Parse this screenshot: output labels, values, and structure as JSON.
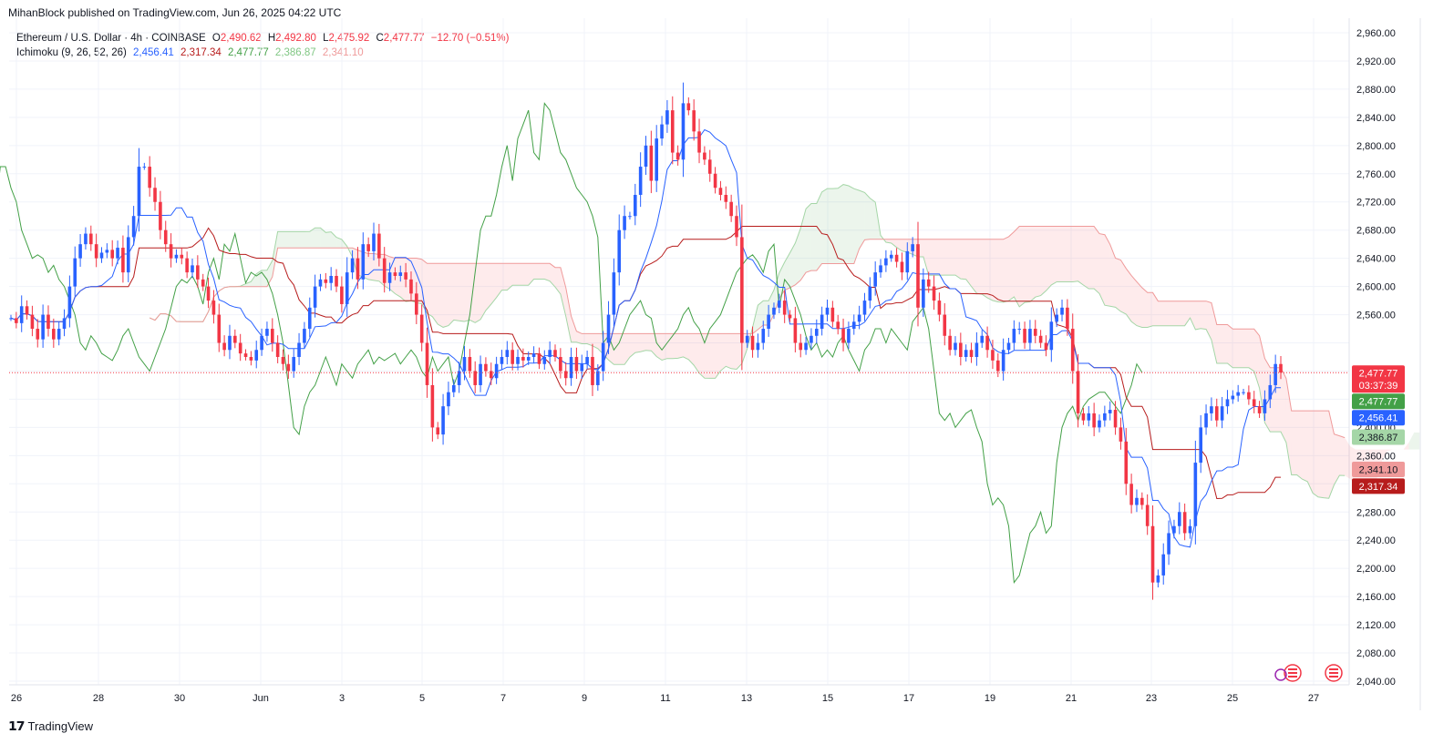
{
  "header": {
    "published": "MihanBlock published on TradingView.com, Jun 26, 2025 04:22 UTC"
  },
  "legend": {
    "symbol": "Ethereum / U.S. Dollar · 4h · COINBASE",
    "o_label": "O",
    "o_value": "2,490.62",
    "h_label": "H",
    "h_value": "2,492.80",
    "l_label": "L",
    "l_value": "2,475.92",
    "c_label": "C",
    "c_value": "2,477.77",
    "change": "−12.70 (−0.51%)",
    "indicator": "Ichimoku (9, 26, 52, 26)",
    "ind_values": [
      "2,456.41",
      "2,317.34",
      "2,477.77",
      "2,386.87",
      "2,341.10"
    ]
  },
  "footer": {
    "brand": "TradingView"
  },
  "colors": {
    "up": "#2962ff",
    "down": "#f23645",
    "conversion": "#2962ff",
    "base": "#b71c1c",
    "lagging": "#43a047",
    "lead_a": "#a5d6a7",
    "lead_b": "#ef9a9a",
    "cloud_bull": "rgba(67,160,71,0.10)",
    "cloud_bear": "rgba(242,54,69,0.10)"
  },
  "chart_data": {
    "type": "candlestick",
    "x_ticks": [
      "26",
      "28",
      "30",
      "Jun",
      "3",
      "5",
      "7",
      "9",
      "11",
      "13",
      "15",
      "17",
      "19",
      "21",
      "23",
      "25",
      "27"
    ],
    "y_ticks": [
      "2,960.00",
      "2,920.00",
      "2,880.00",
      "2,840.00",
      "2,800.00",
      "2,760.00",
      "2,720.00",
      "2,680.00",
      "2,640.00",
      "2,600.00",
      "2,560.00",
      "2,440.00",
      "2,400.00",
      "2,360.00",
      "2,280.00",
      "2,240.00",
      "2,200.00",
      "2,160.00",
      "2,120.00",
      "2,080.00",
      "2,040.00"
    ],
    "ylim": [
      2040,
      2960
    ],
    "price_labels": [
      {
        "name": "last-price",
        "text": "2,477.77",
        "sub": "03:37:39",
        "value": 2477.77,
        "color": "#f23645"
      },
      {
        "name": "lead-a",
        "text": "2,477.77",
        "value": 2477.77,
        "color": "#43a047"
      },
      {
        "name": "conversion",
        "text": "2,456.41",
        "value": 2456.41,
        "color": "#2962ff"
      },
      {
        "name": "lagging",
        "text": "2,386.87",
        "value": 2386.87,
        "color": "#a5d6a7",
        "dark": true
      },
      {
        "name": "lead-b",
        "text": "2,341.10",
        "value": 2341.1,
        "color": "#ef9a9a",
        "dark": true
      },
      {
        "name": "base",
        "text": "2,317.34",
        "value": 2317.34,
        "color": "#b71c1c"
      }
    ],
    "candles_close": [
      2555,
      2548,
      2572,
      2560,
      2540,
      2525,
      2560,
      2540,
      2525,
      2540,
      2555,
      2600,
      2640,
      2660,
      2675,
      2660,
      2640,
      2648,
      2652,
      2640,
      2655,
      2620,
      2670,
      2700,
      2770,
      2770,
      2740,
      2720,
      2680,
      2660,
      2640,
      2645,
      2640,
      2620,
      2630,
      2610,
      2600,
      2580,
      2560,
      2520,
      2510,
      2530,
      2520,
      2505,
      2500,
      2495,
      2510,
      2530,
      2540,
      2520,
      2500,
      2490,
      2480,
      2500,
      2520,
      2540,
      2570,
      2600,
      2610,
      2605,
      2615,
      2600,
      2575,
      2620,
      2640,
      2610,
      2660,
      2650,
      2675,
      2640,
      2605,
      2620,
      2615,
      2620,
      2610,
      2590,
      2560,
      2520,
      2460,
      2400,
      2390,
      2430,
      2450,
      2460,
      2480,
      2500,
      2480,
      2460,
      2490,
      2480,
      2470,
      2490,
      2500,
      2510,
      2490,
      2500,
      2495,
      2500,
      2505,
      2490,
      2500,
      2510,
      2500,
      2480,
      2470,
      2500,
      2480,
      2490,
      2500,
      2460,
      2480,
      2520,
      2560,
      2620,
      2680,
      2700,
      2700,
      2730,
      2770,
      2800,
      2750,
      2810,
      2830,
      2850,
      2790,
      2780,
      2860,
      2850,
      2820,
      2790,
      2780,
      2760,
      2740,
      2730,
      2720,
      2700,
      2670,
      2520,
      2530,
      2510,
      2520,
      2540,
      2560,
      2570,
      2580,
      2560,
      2555,
      2520,
      2510,
      2520,
      2530,
      2540,
      2560,
      2570,
      2550,
      2540,
      2520,
      2540,
      2550,
      2560,
      2580,
      2600,
      2620,
      2630,
      2640,
      2645,
      2635,
      2620,
      2650,
      2660,
      2570,
      2610,
      2600,
      2580,
      2560,
      2530,
      2510,
      2520,
      2500,
      2510,
      2500,
      2520,
      2530,
      2510,
      2495,
      2480,
      2510,
      2520,
      2540,
      2540,
      2520,
      2540,
      2530,
      2520,
      2510,
      2550,
      2560,
      2570,
      2540,
      2480,
      2420,
      2410,
      2420,
      2400,
      2410,
      2420,
      2425,
      2400,
      2380,
      2320,
      2290,
      2300,
      2290,
      2260,
      2180,
      2190,
      2220,
      2250,
      2260,
      2280,
      2250,
      2260,
      2350,
      2400,
      2420,
      2430,
      2410,
      2430,
      2440,
      2445,
      2450,
      2450,
      2440,
      2430,
      2420,
      2440,
      2460,
      2490,
      2478
    ]
  }
}
